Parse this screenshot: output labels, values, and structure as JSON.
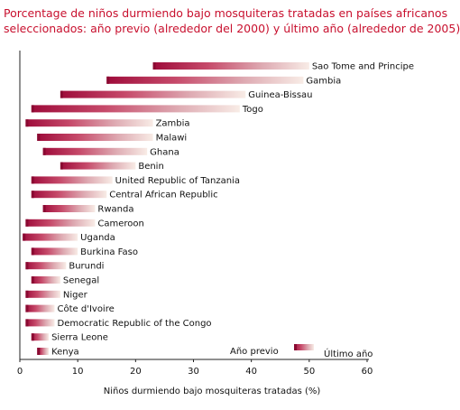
{
  "title": {
    "line1": "Porcentage de niños durmiendo bajo mosquiteras tratadas en países africanos",
    "line2": "seleccionados: año previo (alrededor del 2000) y último año (alrededor de 2005)"
  },
  "colors": {
    "title": "#c8102e",
    "bar_start": "#9e0b3a",
    "bar_mid": "#d98a9c",
    "bar_end": "#f8ece6"
  },
  "chart_data": {
    "type": "bar",
    "orientation": "horizontal",
    "xlabel": "Niños durmiendo bajo mosquiteras tratadas (%)",
    "xlim": [
      0,
      60
    ],
    "xticks": [
      0,
      10,
      20,
      30,
      40,
      50,
      60
    ],
    "legend": {
      "start_label": "Año previo",
      "end_label": "Último año",
      "placement": "bottom-right"
    },
    "categories": [
      "Sao Tome and Principe",
      "Gambia",
      "Guinea-Bissau",
      "Togo",
      "Zambia",
      "Malawi",
      "Ghana",
      "Benin",
      "United Republic of Tanzania",
      "Central African Republic",
      "Rwanda",
      "Cameroon",
      "Uganda",
      "Burkina Faso",
      "Burundi",
      "Senegal",
      "Niger",
      "Côte d'Ivoire",
      "Democratic Republic of the Congo",
      "Sierra Leone",
      "Kenya"
    ],
    "series": [
      {
        "name": "Año previo",
        "values": [
          23,
          15,
          7,
          2,
          1,
          3,
          4,
          7,
          2,
          2,
          4,
          1,
          0.5,
          2,
          1,
          2,
          1,
          1,
          1,
          2,
          3
        ]
      },
      {
        "name": "Último año",
        "values": [
          50,
          49,
          39,
          38,
          23,
          23,
          22,
          20,
          16,
          15,
          13,
          13,
          10,
          10,
          8,
          7,
          7,
          6,
          6,
          5,
          5
        ]
      }
    ]
  }
}
